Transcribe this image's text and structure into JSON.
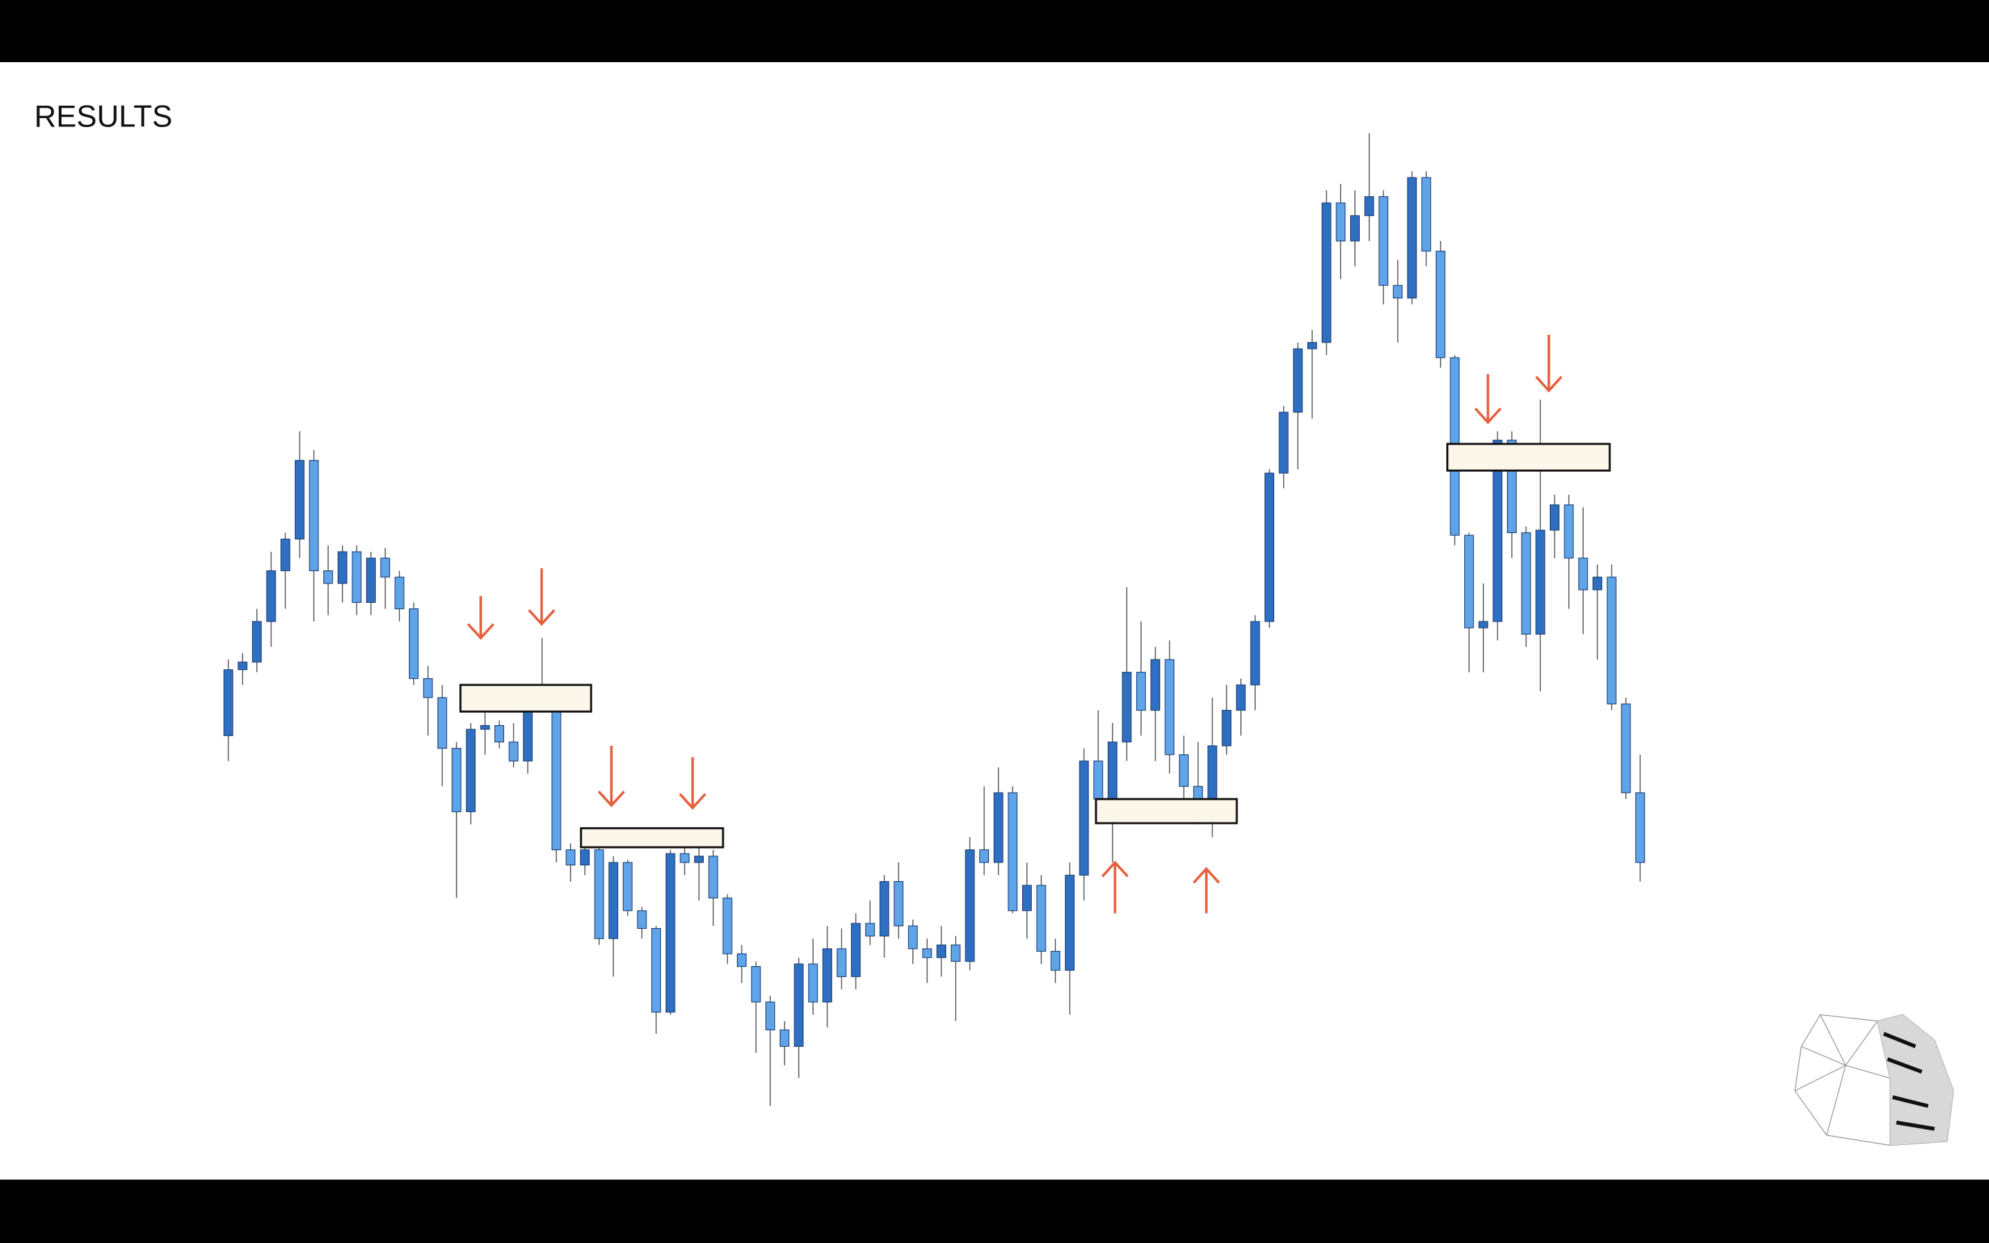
{
  "chart_data": {
    "type": "candlestick",
    "title": "RESULTS",
    "up_color": "#2f6fc2",
    "down_color": "#5fa3e8",
    "wick_color": "#555555",
    "ylim": [
      100,
      900
    ],
    "open": [
      400,
      452,
      458,
      490,
      530,
      555,
      617,
      530,
      520,
      545,
      505,
      540,
      525,
      500,
      445,
      430,
      390,
      340,
      405,
      408,
      395,
      380,
      428,
      435,
      310,
      298,
      310,
      240,
      300,
      262,
      248,
      182,
      307,
      300,
      305,
      272,
      228,
      218,
      190,
      168,
      155,
      220,
      190,
      232,
      210,
      252,
      242,
      285,
      250,
      232,
      225,
      235,
      222,
      310,
      300,
      355,
      262,
      282,
      230,
      215,
      290,
      380,
      350,
      395,
      450,
      420,
      460,
      385,
      360,
      350,
      392,
      420,
      440,
      490,
      607,
      655,
      705,
      710,
      820,
      790,
      810,
      825,
      755,
      745,
      840,
      782,
      698,
      558,
      485,
      490,
      633,
      560,
      480,
      562,
      582,
      540,
      515,
      525,
      425,
      355
    ],
    "high": [
      460,
      465,
      500,
      545,
      560,
      640,
      625,
      550,
      550,
      550,
      545,
      548,
      530,
      505,
      455,
      440,
      395,
      410,
      420,
      412,
      410,
      435,
      477,
      440,
      315,
      318,
      312,
      305,
      302,
      265,
      250,
      310,
      312,
      312,
      310,
      275,
      235,
      222,
      195,
      175,
      225,
      240,
      250,
      248,
      260,
      270,
      290,
      300,
      255,
      240,
      250,
      242,
      320,
      360,
      375,
      360,
      300,
      290,
      240,
      300,
      390,
      420,
      410,
      517,
      490,
      470,
      475,
      400,
      395,
      430,
      440,
      445,
      495,
      610,
      660,
      710,
      720,
      830,
      835,
      830,
      875,
      830,
      775,
      845,
      845,
      790,
      700,
      560,
      520,
      640,
      640,
      565,
      665,
      590,
      590,
      580,
      535,
      535,
      430,
      385
    ],
    "low": [
      380,
      440,
      450,
      470,
      500,
      540,
      490,
      495,
      505,
      495,
      495,
      500,
      490,
      440,
      400,
      360,
      272,
      330,
      385,
      390,
      375,
      370,
      420,
      300,
      285,
      290,
      235,
      210,
      258,
      240,
      165,
      180,
      290,
      270,
      250,
      220,
      205,
      150,
      108,
      140,
      130,
      180,
      170,
      200,
      200,
      235,
      225,
      240,
      220,
      205,
      210,
      175,
      215,
      290,
      290,
      260,
      240,
      220,
      205,
      180,
      270,
      330,
      300,
      380,
      400,
      380,
      370,
      340,
      330,
      320,
      385,
      400,
      420,
      485,
      595,
      610,
      650,
      700,
      760,
      770,
      790,
      740,
      710,
      740,
      770,
      690,
      550,
      450,
      450,
      475,
      540,
      470,
      435,
      540,
      500,
      480,
      460,
      420,
      350,
      285
    ],
    "close": [
      452,
      458,
      490,
      530,
      555,
      617,
      530,
      520,
      545,
      505,
      540,
      525,
      500,
      445,
      430,
      390,
      340,
      405,
      408,
      395,
      380,
      428,
      435,
      310,
      298,
      310,
      240,
      300,
      262,
      248,
      182,
      307,
      300,
      305,
      272,
      228,
      218,
      190,
      168,
      155,
      220,
      190,
      232,
      210,
      252,
      242,
      285,
      250,
      232,
      225,
      235,
      222,
      310,
      300,
      355,
      262,
      282,
      230,
      215,
      290,
      380,
      350,
      395,
      450,
      420,
      460,
      385,
      360,
      350,
      392,
      420,
      440,
      490,
      607,
      655,
      705,
      710,
      820,
      790,
      810,
      825,
      755,
      745,
      840,
      782,
      698,
      558,
      485,
      490,
      633,
      560,
      480,
      562,
      582,
      540,
      515,
      525,
      425,
      355,
      300
    ]
  }
}
